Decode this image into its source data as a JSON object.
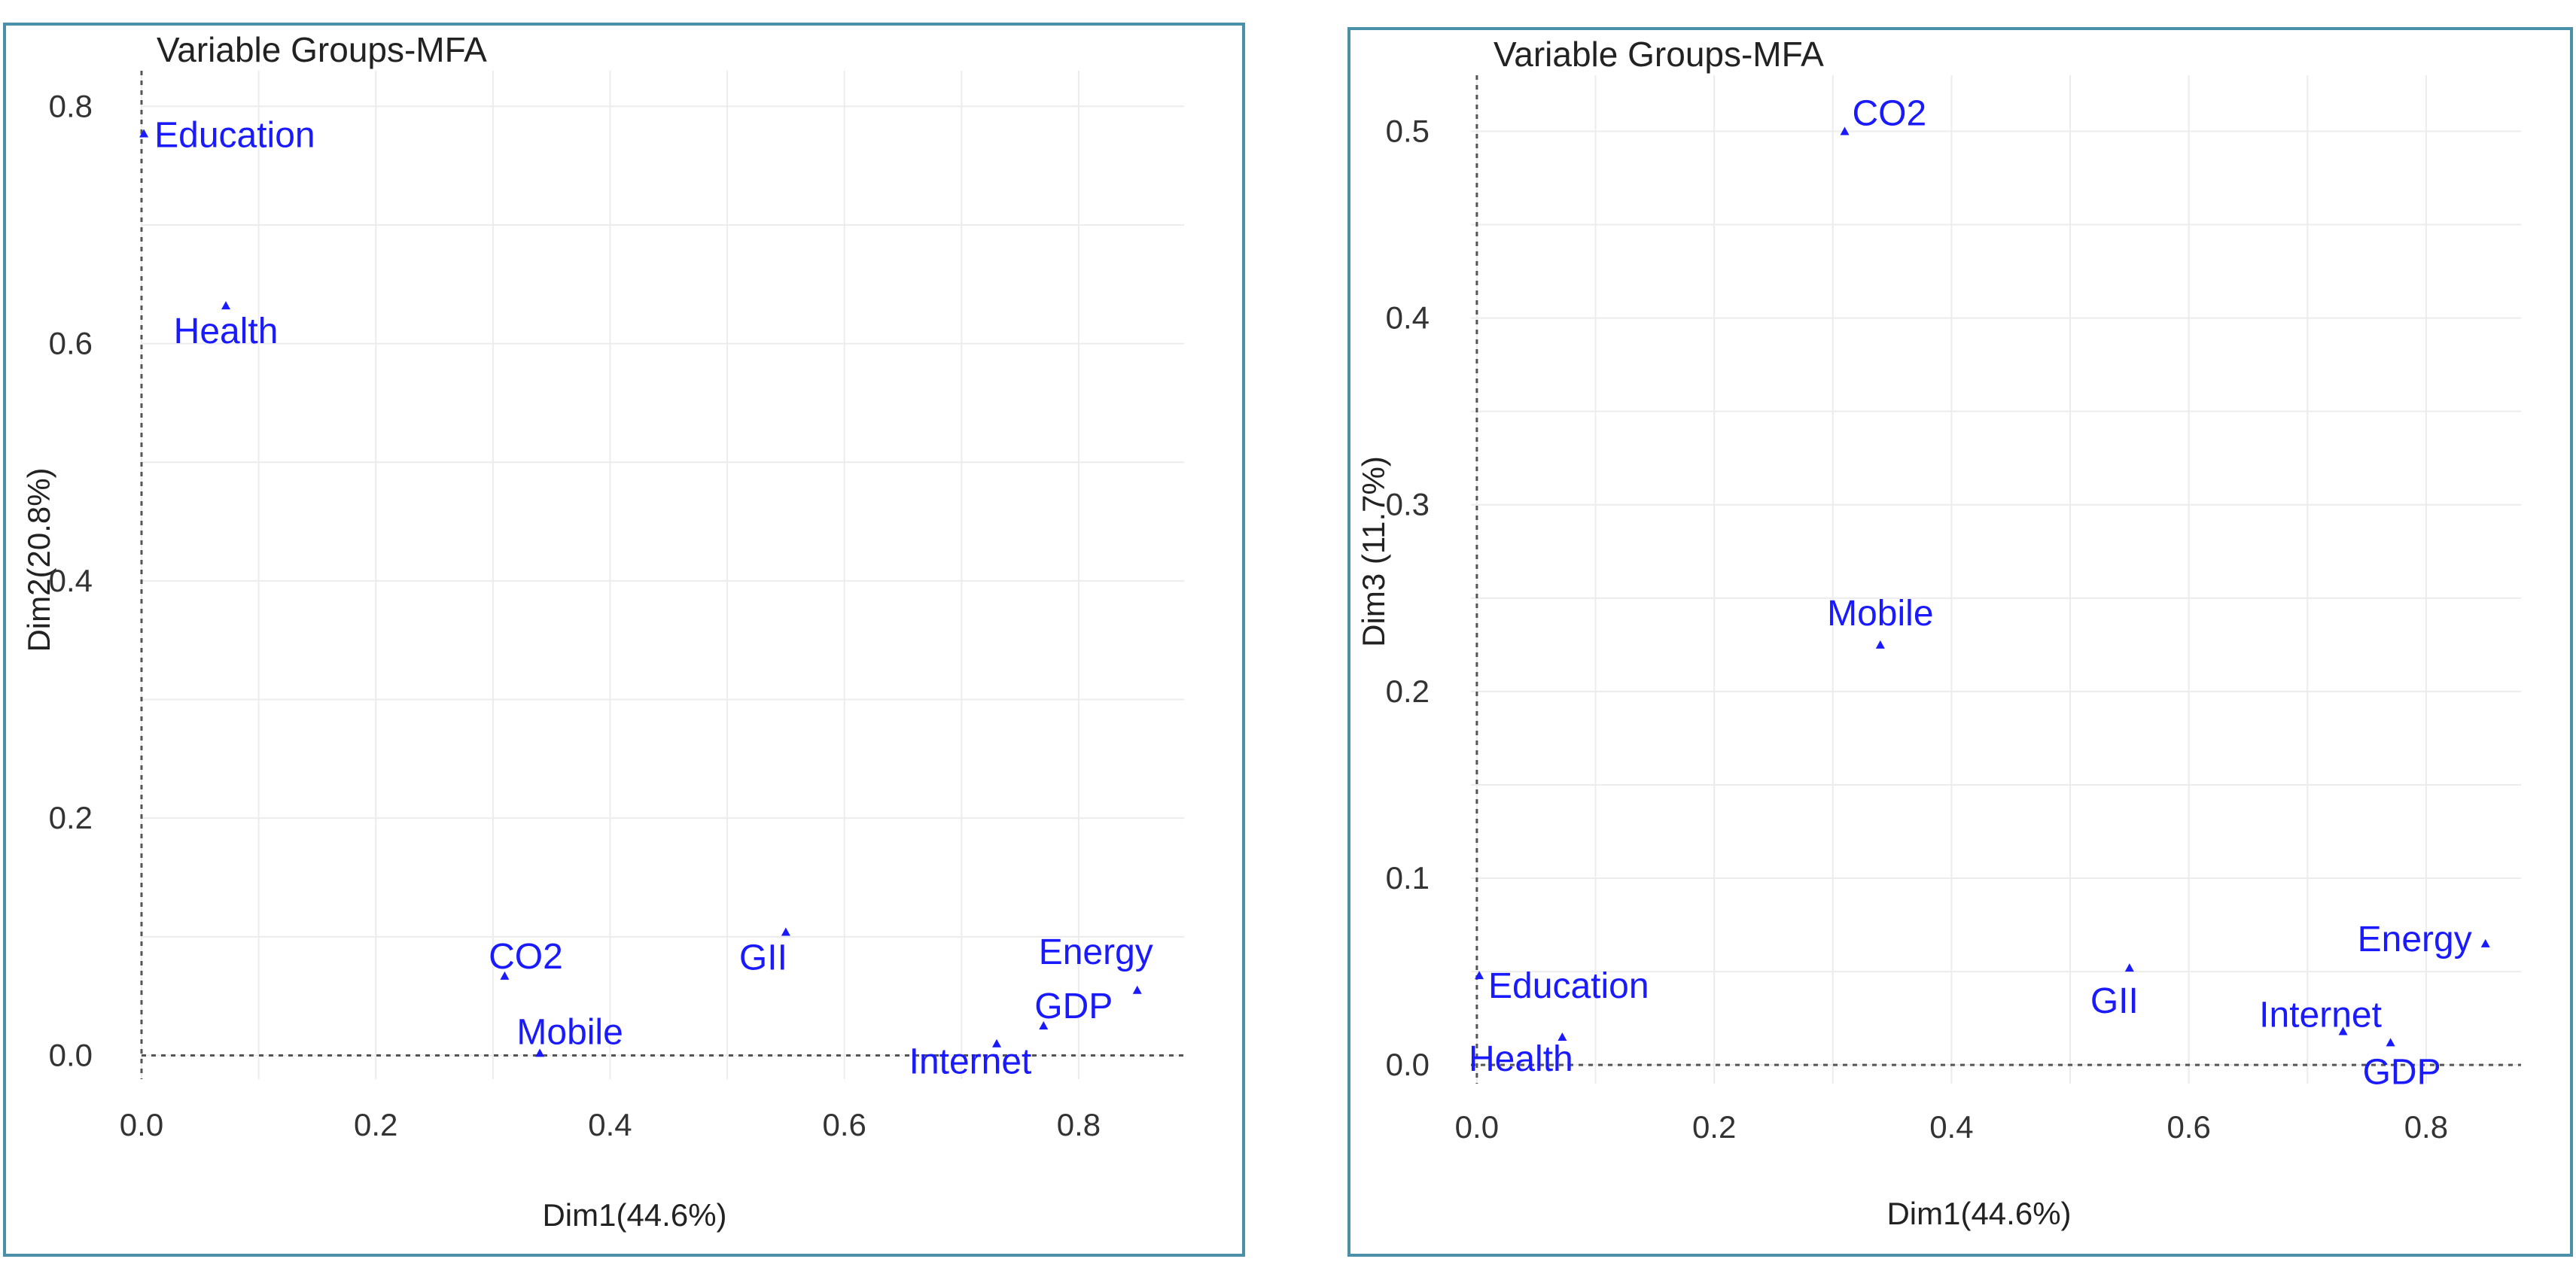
{
  "chart_data": [
    {
      "type": "scatter",
      "title": "Variable Groups-MFA",
      "xlabel": "Dim1(44.6%)",
      "ylabel": "Dim2(20.8%)",
      "xlim": [
        0,
        0.89
      ],
      "ylim": [
        -0.02,
        0.83
      ],
      "xticks": [
        0.0,
        0.2,
        0.4,
        0.6,
        0.8
      ],
      "xtick_labels": [
        "0.0",
        "0.2",
        "0.4",
        "0.6",
        "0.8"
      ],
      "yticks": [
        0.0,
        0.2,
        0.4,
        0.6,
        0.8
      ],
      "ytick_labels": [
        "0.0",
        "0.2",
        "0.4",
        "0.6",
        "0.8"
      ],
      "grid": true,
      "reference_lines": {
        "x": 0,
        "y": 0
      },
      "points": [
        {
          "label": "Education",
          "x": 0.002,
          "y": 0.777
        },
        {
          "label": "Health",
          "x": 0.072,
          "y": 0.632
        },
        {
          "label": "CO2",
          "x": 0.31,
          "y": 0.067
        },
        {
          "label": "Mobile",
          "x": 0.34,
          "y": 0.002
        },
        {
          "label": "GII",
          "x": 0.55,
          "y": 0.104
        },
        {
          "label": "Internet",
          "x": 0.73,
          "y": 0.01
        },
        {
          "label": "GDP",
          "x": 0.77,
          "y": 0.025
        },
        {
          "label": "Energy",
          "x": 0.85,
          "y": 0.055
        }
      ],
      "point_color": "#1a1aff"
    },
    {
      "type": "scatter",
      "title": "Variable Groups-MFA",
      "xlabel": "Dim1(44.6%)",
      "ylabel": "Dim3 (11.7%)",
      "xlim": [
        -0.005,
        0.88
      ],
      "ylim": [
        -0.01,
        0.53
      ],
      "xticks": [
        0.0,
        0.2,
        0.4,
        0.6,
        0.8
      ],
      "xtick_labels": [
        "0.0",
        "0.2",
        "0.4",
        "0.6",
        "0.8"
      ],
      "yticks": [
        0.0,
        0.1,
        0.2,
        0.3,
        0.4,
        0.5
      ],
      "ytick_labels": [
        "0.0",
        "0.1",
        "0.2",
        "0.3",
        "0.4",
        "0.5"
      ],
      "grid": true,
      "reference_lines": {
        "x": 0,
        "y": 0
      },
      "points": [
        {
          "label": "CO2",
          "x": 0.31,
          "y": 0.5
        },
        {
          "label": "Mobile",
          "x": 0.34,
          "y": 0.225
        },
        {
          "label": "Energy",
          "x": 0.85,
          "y": 0.065
        },
        {
          "label": "Education",
          "x": 0.002,
          "y": 0.048
        },
        {
          "label": "GII",
          "x": 0.55,
          "y": 0.052
        },
        {
          "label": "Internet",
          "x": 0.73,
          "y": 0.018
        },
        {
          "label": "Health",
          "x": 0.072,
          "y": 0.015
        },
        {
          "label": "GDP",
          "x": 0.77,
          "y": 0.012
        }
      ],
      "point_color": "#1a1aff"
    }
  ]
}
